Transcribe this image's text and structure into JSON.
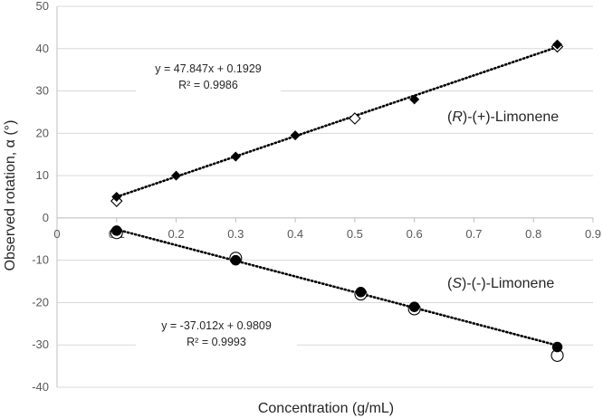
{
  "chart_data": {
    "type": "scatter",
    "title": "",
    "xlabel": "Concentration (g/mL)",
    "ylabel": "Observed rotation, α (°)",
    "xlim": [
      0,
      0.9
    ],
    "ylim": [
      -40,
      50
    ],
    "xticks": [
      "0",
      "0.1",
      "0.2",
      "0.3",
      "0.4",
      "0.5",
      "0.6",
      "0.7",
      "0.8",
      "0.9"
    ],
    "yticks": [
      "50",
      "40",
      "30",
      "20",
      "10",
      "0",
      "-10",
      "-20",
      "-30",
      "-40"
    ],
    "grid": "horizontal",
    "series": [
      {
        "name": "(R)-(+)-Limonene",
        "label_parts": [
          "(",
          "R",
          ")-(+)-Limonene"
        ],
        "filled_marker": "diamond",
        "open_marker": "diamond",
        "filled": [
          [
            0.1,
            5.0
          ],
          [
            0.2,
            10.0
          ],
          [
            0.3,
            14.5
          ],
          [
            0.4,
            19.5
          ],
          [
            0.6,
            28.0
          ],
          [
            0.84,
            41.0
          ]
        ],
        "open": [
          [
            0.1,
            4.0
          ],
          [
            0.5,
            23.5
          ],
          [
            0.84,
            40.5
          ]
        ],
        "trendline": {
          "slope": 47.847,
          "intercept": 0.1929,
          "x_range": [
            0.1,
            0.84
          ]
        },
        "equation": "y = 47.847x + 0.1929",
        "r2": "R² = 0.9986"
      },
      {
        "name": "(S)-(-)-Limonene",
        "label_parts": [
          "(",
          "S",
          ")-(-)-Limonene"
        ],
        "filled_marker": "circle",
        "open_marker": "circle",
        "filled": [
          [
            0.1,
            -3.0
          ],
          [
            0.3,
            -10.0
          ],
          [
            0.51,
            -17.5
          ],
          [
            0.6,
            -21.0
          ],
          [
            0.84,
            -30.5
          ]
        ],
        "open": [
          [
            0.1,
            -3.5
          ],
          [
            0.3,
            -9.5
          ],
          [
            0.51,
            -18.0
          ],
          [
            0.6,
            -21.5
          ],
          [
            0.84,
            -32.5
          ]
        ],
        "trendline": {
          "slope": -37.012,
          "intercept": 0.9809,
          "x_range": [
            0.1,
            0.84
          ]
        },
        "equation": "y = -37.012x + 0.9809",
        "r2": "R² = 0.9993"
      }
    ]
  }
}
